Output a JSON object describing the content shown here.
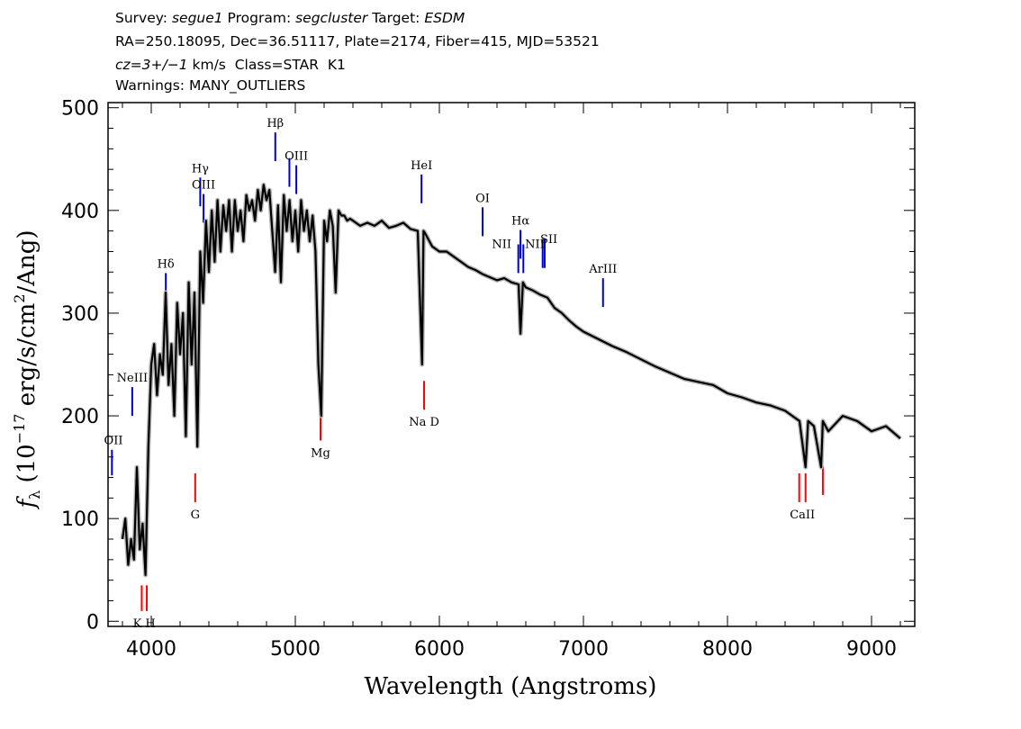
{
  "header": {
    "line1": {
      "survey_label": "Survey: ",
      "survey": "segue1",
      "program_label": " Program: ",
      "program": "segcluster",
      "target_label": " Target: ",
      "target": "ESDM"
    },
    "line2": "RA=250.18095, Dec=36.51117, Plate=2174, Fiber=415, MJD=53521",
    "line3": {
      "cz": "cz=3+/−1",
      "rest": " km/s  Class=STAR  K1"
    },
    "line4": "Warnings: MANY_OUTLIERS"
  },
  "chart_data": {
    "type": "line",
    "xlabel": "Wavelength (Angstroms)",
    "ylabel_parts": {
      "f": "f",
      "sub": "λ",
      "mid": " (10",
      "exp1": "−17",
      "mid2": " erg/s/cm",
      "exp2": "2",
      "end": "/Ang)"
    },
    "xlim": [
      3700,
      9300
    ],
    "ylim": [
      -5,
      505
    ],
    "xticks": [
      4000,
      5000,
      6000,
      7000,
      8000,
      9000
    ],
    "yticks": [
      0,
      100,
      200,
      300,
      400,
      500
    ],
    "colors": {
      "spectrum": "#000000",
      "error": "#b4b4b4",
      "emission": "#0000cc",
      "absorption": "#ff0000"
    },
    "series": [
      {
        "x": [
          3800,
          3820,
          3840,
          3860,
          3880,
          3900,
          3920,
          3940,
          3960,
          3980,
          4000,
          4020,
          4040,
          4060,
          4080,
          4100,
          4120,
          4140,
          4160,
          4180,
          4200,
          4220,
          4240,
          4260,
          4280,
          4300,
          4320,
          4340,
          4360,
          4380,
          4400,
          4420,
          4440,
          4460,
          4480,
          4500,
          4520,
          4540,
          4560,
          4580,
          4600,
          4620,
          4640,
          4660,
          4680,
          4700,
          4720,
          4740,
          4760,
          4780,
          4800,
          4820,
          4840,
          4860,
          4880,
          4900,
          4920,
          4940,
          4960,
          4980,
          5000,
          5020,
          5040,
          5060,
          5080,
          5100,
          5120,
          5140,
          5160,
          5180,
          5200,
          5220,
          5240,
          5260,
          5280,
          5300,
          5320,
          5340,
          5360,
          5380,
          5400,
          5450,
          5500,
          5550,
          5600,
          5650,
          5700,
          5750,
          5800,
          5850,
          5880,
          5890,
          5900,
          5950,
          6000,
          6050,
          6100,
          6150,
          6200,
          6250,
          6300,
          6350,
          6400,
          6450,
          6500,
          6550,
          6563,
          6580,
          6600,
          6650,
          6700,
          6750,
          6800,
          6850,
          6900,
          6950,
          7000,
          7100,
          7200,
          7300,
          7400,
          7500,
          7600,
          7700,
          7800,
          7900,
          8000,
          8100,
          8200,
          8300,
          8400,
          8450,
          8500,
          8542,
          8560,
          8600,
          8650,
          8662,
          8700,
          8800,
          8900,
          9000,
          9100,
          9200
        ],
        "y": [
          80,
          100,
          55,
          80,
          60,
          150,
          70,
          95,
          45,
          170,
          250,
          270,
          220,
          260,
          240,
          320,
          230,
          270,
          200,
          310,
          260,
          300,
          180,
          330,
          250,
          320,
          170,
          360,
          310,
          390,
          340,
          400,
          350,
          410,
          360,
          405,
          380,
          410,
          360,
          410,
          380,
          400,
          370,
          415,
          400,
          410,
          390,
          420,
          400,
          425,
          410,
          420,
          380,
          340,
          405,
          330,
          415,
          380,
          410,
          370,
          400,
          360,
          410,
          380,
          400,
          370,
          395,
          360,
          250,
          200,
          390,
          370,
          400,
          385,
          320,
          400,
          395,
          395,
          390,
          392,
          390,
          385,
          388,
          385,
          390,
          383,
          385,
          388,
          382,
          380,
          250,
          380,
          378,
          365,
          360,
          360,
          355,
          350,
          345,
          342,
          338,
          335,
          332,
          334,
          330,
          328,
          280,
          330,
          325,
          322,
          318,
          315,
          305,
          300,
          293,
          287,
          282,
          275,
          268,
          262,
          255,
          248,
          242,
          236,
          233,
          230,
          222,
          218,
          213,
          210,
          205,
          200,
          195,
          150,
          195,
          190,
          150,
          195,
          185,
          200,
          195,
          185,
          190,
          178
        ]
      }
    ],
    "emission_lines": [
      {
        "label": "OII",
        "wavelength": 3727,
        "flux_lo": 142,
        "flux_hi": 167
      },
      {
        "label": "NeIII",
        "wavelength": 3868,
        "flux_lo": 200,
        "flux_hi": 228
      },
      {
        "label": "Hδ",
        "wavelength": 4101,
        "flux_lo": 311,
        "flux_hi": 339
      },
      {
        "label": "Hγ",
        "wavelength": 4340,
        "flux_lo": 404,
        "flux_hi": 432
      },
      {
        "label": "OIII",
        "wavelength": 4363,
        "flux_lo": 388,
        "flux_hi": 416
      },
      {
        "label": "Hβ",
        "wavelength": 4861,
        "flux_lo": 448,
        "flux_hi": 476
      },
      {
        "label": "OIII",
        "wavelength": 4959,
        "flux_lo": 423,
        "flux_hi": 451
      },
      {
        "label": "OIII",
        "wavelength": 5007,
        "flux_lo": 416,
        "flux_hi": 444
      },
      {
        "label": "HeI",
        "wavelength": 5876,
        "flux_lo": 407,
        "flux_hi": 435
      },
      {
        "label": "OI",
        "wavelength": 6300,
        "flux_lo": 375,
        "flux_hi": 403
      },
      {
        "label": "NII",
        "wavelength": 6548,
        "flux_lo": 339,
        "flux_hi": 367
      },
      {
        "label": "Hα",
        "wavelength": 6563,
        "flux_lo": 353,
        "flux_hi": 381
      },
      {
        "label": "NII",
        "wavelength": 6583,
        "flux_lo": 339,
        "flux_hi": 367
      },
      {
        "label": "SII",
        "wavelength": 6717,
        "flux_lo": 344,
        "flux_hi": 372
      },
      {
        "label": "SII",
        "wavelength": 6731,
        "flux_lo": 344,
        "flux_hi": 372
      },
      {
        "label": "ArIII",
        "wavelength": 7136,
        "flux_lo": 306,
        "flux_hi": 334
      }
    ],
    "absorption_lines": [
      {
        "label": "K",
        "wavelength": 3934,
        "flux_lo": 10,
        "flux_hi": 35
      },
      {
        "label": "H",
        "wavelength": 3969,
        "flux_lo": 10,
        "flux_hi": 35
      },
      {
        "label": "G",
        "wavelength": 4305,
        "flux_lo": 116,
        "flux_hi": 144
      },
      {
        "label": "Mg",
        "wavelength": 5175,
        "flux_lo": 176,
        "flux_hi": 204
      },
      {
        "label": "Na D",
        "wavelength": 5894,
        "flux_lo": 206,
        "flux_hi": 234
      },
      {
        "label": "CaII",
        "wavelength": 8498,
        "flux_lo": 116,
        "flux_hi": 144
      },
      {
        "label": "CaII",
        "wavelength": 8542,
        "flux_lo": 116,
        "flux_hi": 144
      },
      {
        "label": "CaII",
        "wavelength": 8662,
        "flux_lo": 123,
        "flux_hi": 151
      }
    ],
    "annotations": [
      "OII",
      "NeIII",
      "Hδ",
      "Hγ",
      "OIII",
      "Hβ",
      "OIII",
      "HeI",
      "OI",
      "NII",
      "Hα",
      "NII",
      "SII",
      "ArIII",
      "K H",
      "G",
      "Mg",
      "Na D",
      "CaII"
    ]
  }
}
